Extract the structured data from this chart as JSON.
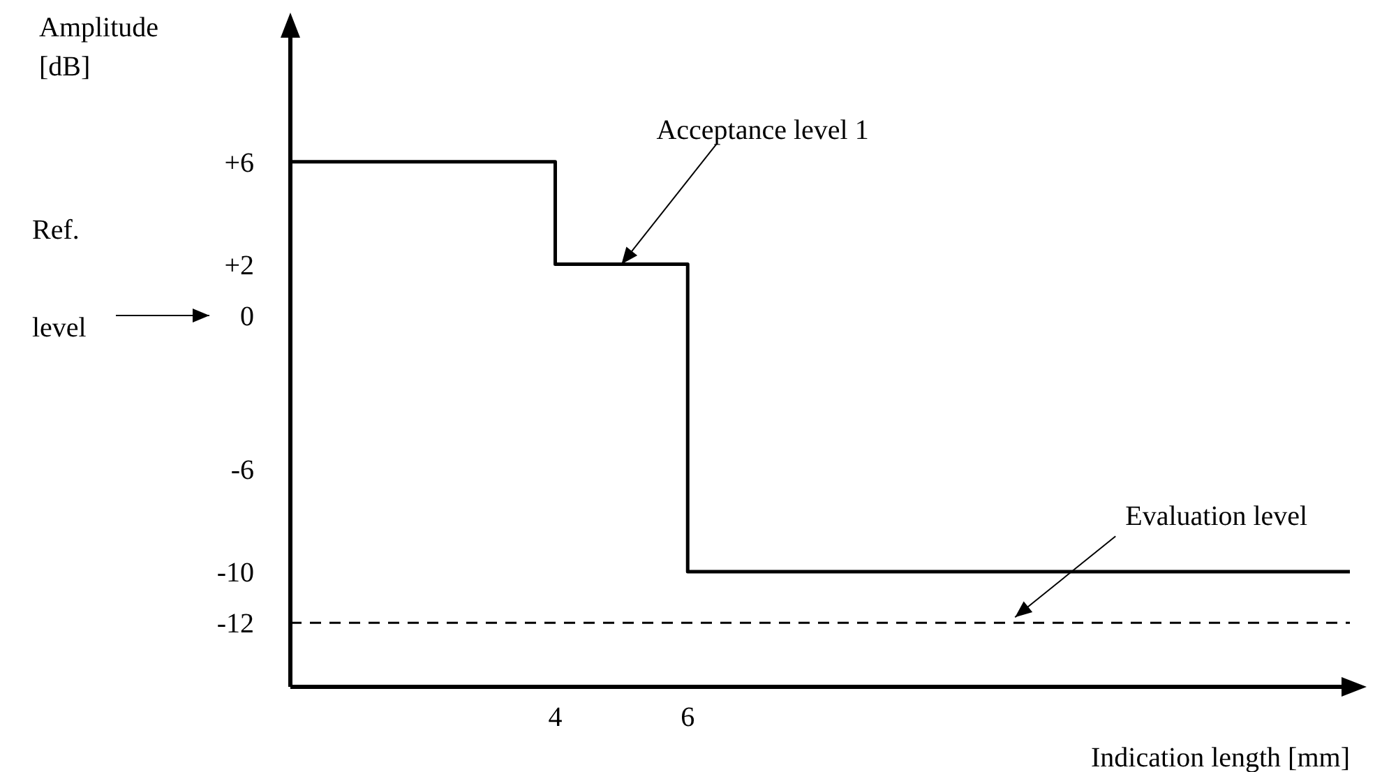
{
  "chart_data": {
    "type": "step",
    "xlabel": "Indication length [mm]",
    "ylabel": "Amplitude [dB]",
    "x": [
      0,
      4,
      6,
      16
    ],
    "series": [
      {
        "color": "#000000",
        "values": [
          6,
          2,
          -10,
          -10
        ]
      }
    ],
    "xlim": [
      0,
      16
    ],
    "xticks": [
      4,
      6
    ],
    "ylim": [
      -14.5,
      11.5
    ],
    "yticks": [
      {
        "value": 6,
        "label": "+6"
      },
      {
        "value": 2,
        "label": "+2"
      },
      0,
      -6,
      -10,
      -12
    ],
    "ref_lines": [
      {
        "axis": "y",
        "value": -12,
        "label": "Evaluation level",
        "color": "#000000",
        "line_style": "dashed"
      }
    ],
    "annotations": [
      {
        "text": "Acceptance level 1",
        "x": 5,
        "y": 2
      },
      "Ref. level"
    ],
    "marker": "none",
    "line_style": "solid"
  }
}
